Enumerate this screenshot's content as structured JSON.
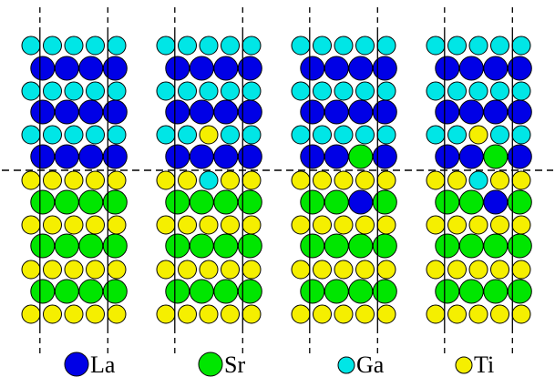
{
  "colors": {
    "La": "#0000e6",
    "Sr": "#00e600",
    "Ga": "#00e6e6",
    "Ti": "#f5ef00",
    "outline": "#000000"
  },
  "legend": [
    {
      "species": "La",
      "label": "La"
    },
    {
      "species": "Sr",
      "label": "Sr"
    },
    {
      "species": "Ga",
      "label": "Ga"
    },
    {
      "species": "Ti",
      "label": "Ti"
    }
  ],
  "panels": [
    {
      "rows": [
        [
          "Ga",
          "Ga",
          "Ga",
          "Ga",
          "Ga"
        ],
        [
          "La",
          "La",
          "La",
          "La"
        ],
        [
          "Ga",
          "Ga",
          "Ga",
          "Ga",
          "Ga"
        ],
        [
          "La",
          "La",
          "La",
          "La"
        ],
        [
          "Ga",
          "Ga",
          "Ga",
          "Ga",
          "Ga"
        ],
        [
          "La",
          "La",
          "La",
          "La"
        ],
        [
          "Ti",
          "Ti",
          "Ti",
          "Ti",
          "Ti"
        ],
        [
          "Sr",
          "Sr",
          "Sr",
          "Sr"
        ],
        [
          "Ti",
          "Ti",
          "Ti",
          "Ti",
          "Ti"
        ],
        [
          "Sr",
          "Sr",
          "Sr",
          "Sr"
        ],
        [
          "Ti",
          "Ti",
          "Ti",
          "Ti",
          "Ti"
        ],
        [
          "Sr",
          "Sr",
          "Sr",
          "Sr"
        ],
        [
          "Ti",
          "Ti",
          "Ti",
          "Ti",
          "Ti"
        ]
      ]
    },
    {
      "rows": [
        [
          "Ga",
          "Ga",
          "Ga",
          "Ga",
          "Ga"
        ],
        [
          "La",
          "La",
          "La",
          "La"
        ],
        [
          "Ga",
          "Ga",
          "Ga",
          "Ga",
          "Ga"
        ],
        [
          "La",
          "La",
          "La",
          "La"
        ],
        [
          "Ga",
          "Ga",
          "Ti",
          "Ga",
          "Ga"
        ],
        [
          "La",
          "La",
          "La",
          "La"
        ],
        [
          "Ti",
          "Ti",
          "Ga",
          "Ti",
          "Ti"
        ],
        [
          "Sr",
          "Sr",
          "Sr",
          "Sr"
        ],
        [
          "Ti",
          "Ti",
          "Ti",
          "Ti",
          "Ti"
        ],
        [
          "Sr",
          "Sr",
          "Sr",
          "Sr"
        ],
        [
          "Ti",
          "Ti",
          "Ti",
          "Ti",
          "Ti"
        ],
        [
          "Sr",
          "Sr",
          "Sr",
          "Sr"
        ],
        [
          "Ti",
          "Ti",
          "Ti",
          "Ti",
          "Ti"
        ]
      ]
    },
    {
      "rows": [
        [
          "Ga",
          "Ga",
          "Ga",
          "Ga",
          "Ga"
        ],
        [
          "La",
          "La",
          "La",
          "La"
        ],
        [
          "Ga",
          "Ga",
          "Ga",
          "Ga",
          "Ga"
        ],
        [
          "La",
          "La",
          "La",
          "La"
        ],
        [
          "Ga",
          "Ga",
          "Ga",
          "Ga",
          "Ga"
        ],
        [
          "La",
          "La",
          "Sr",
          "La"
        ],
        [
          "Ti",
          "Ti",
          "Ti",
          "Ti",
          "Ti"
        ],
        [
          "Sr",
          "Sr",
          "La",
          "Sr"
        ],
        [
          "Ti",
          "Ti",
          "Ti",
          "Ti",
          "Ti"
        ],
        [
          "Sr",
          "Sr",
          "Sr",
          "Sr"
        ],
        [
          "Ti",
          "Ti",
          "Ti",
          "Ti",
          "Ti"
        ],
        [
          "Sr",
          "Sr",
          "Sr",
          "Sr"
        ],
        [
          "Ti",
          "Ti",
          "Ti",
          "Ti",
          "Ti"
        ]
      ]
    },
    {
      "rows": [
        [
          "Ga",
          "Ga",
          "Ga",
          "Ga",
          "Ga"
        ],
        [
          "La",
          "La",
          "La",
          "La"
        ],
        [
          "Ga",
          "Ga",
          "Ga",
          "Ga",
          "Ga"
        ],
        [
          "La",
          "La",
          "La",
          "La"
        ],
        [
          "Ga",
          "Ga",
          "Ti",
          "Ga",
          "Ga"
        ],
        [
          "La",
          "La",
          "Sr",
          "La"
        ],
        [
          "Ti",
          "Ti",
          "Ga",
          "Ti",
          "Ti"
        ],
        [
          "Sr",
          "Sr",
          "La",
          "Sr"
        ],
        [
          "Ti",
          "Ti",
          "Ti",
          "Ti",
          "Ti"
        ],
        [
          "Sr",
          "Sr",
          "Sr",
          "Sr"
        ],
        [
          "Ti",
          "Ti",
          "Ti",
          "Ti",
          "Ti"
        ],
        [
          "Sr",
          "Sr",
          "Sr",
          "Sr"
        ],
        [
          "Ti",
          "Ti",
          "Ti",
          "Ti",
          "Ti"
        ]
      ]
    }
  ]
}
